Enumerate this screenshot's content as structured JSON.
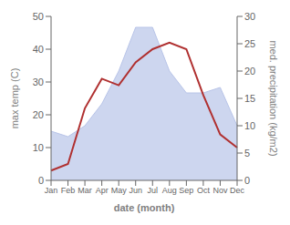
{
  "chart_data": {
    "type": "line",
    "xlabel": "date (month)",
    "ylabel": "max temp (C)",
    "y2label": "med. precipitation (kg/m2)",
    "categories": [
      "Jan",
      "Feb",
      "Mar",
      "Apr",
      "May",
      "Jun",
      "Jul",
      "Aug",
      "Sep",
      "Oct",
      "Nov",
      "Dec"
    ],
    "series": [
      {
        "type": "area",
        "axis": "y2",
        "color": "#b8c4e8",
        "values": [
          9,
          8,
          10,
          14,
          20,
          28,
          28,
          20,
          16,
          16,
          17,
          10
        ]
      },
      {
        "type": "line",
        "color": "#b03030",
        "values": [
          3,
          5,
          22,
          31,
          29,
          36,
          40,
          42,
          40,
          26,
          14,
          10
        ]
      }
    ],
    "ylim": [
      0,
      50
    ],
    "yticks": [
      0,
      10,
      20,
      30,
      40,
      50
    ],
    "y2lim": [
      0,
      30
    ],
    "y2ticks": [
      0,
      5,
      10,
      15,
      20,
      25,
      30
    ],
    "grid": false
  }
}
